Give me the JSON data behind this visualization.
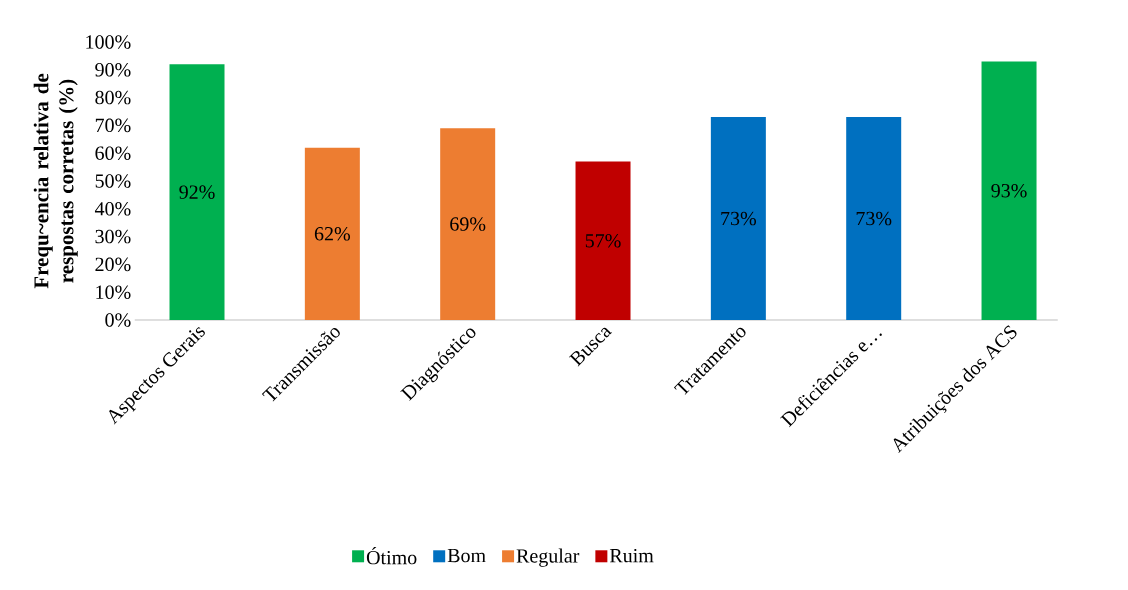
{
  "chart_data": {
    "type": "bar",
    "ylabel": "Frequ~encia relativa de respostas corretas (%)",
    "categories": [
      "Aspectos Gerais",
      "Transmissão",
      "Diagnóstico",
      "Busca",
      "Tratamento",
      "Deficiências e…",
      "Atribuições dos ACS"
    ],
    "series": [
      {
        "name": "Ótimo",
        "color": "#00b050",
        "values": [
          92,
          null,
          null,
          null,
          null,
          null,
          93
        ],
        "value_labels": [
          "92%",
          null,
          null,
          null,
          null,
          null,
          "93%"
        ]
      },
      {
        "name": "Bom",
        "color": "#0070c0",
        "values": [
          null,
          null,
          null,
          null,
          73,
          73,
          null
        ],
        "value_labels": [
          null,
          null,
          null,
          null,
          "73%",
          "73%",
          null
        ]
      },
      {
        "name": "Regular",
        "color": "#ed7d31",
        "values": [
          null,
          62,
          69,
          null,
          null,
          null,
          null
        ],
        "value_labels": [
          null,
          "62%",
          "69%",
          null,
          null,
          null,
          null
        ]
      },
      {
        "name": "Ruim",
        "color": "#c00000",
        "values": [
          null,
          null,
          null,
          57,
          null,
          null,
          null
        ],
        "value_labels": [
          null,
          null,
          null,
          "57%",
          null,
          null,
          null
        ]
      }
    ],
    "ylim": [
      0,
      100
    ],
    "yticks": [
      {
        "value": 0,
        "label": "0%"
      },
      {
        "value": 10,
        "label": "10%"
      },
      {
        "value": 20,
        "label": "20%"
      },
      {
        "value": 30,
        "label": "30%"
      },
      {
        "value": 40,
        "label": "40%"
      },
      {
        "value": 50,
        "label": "50%"
      },
      {
        "value": 60,
        "label": "60%"
      },
      {
        "value": 70,
        "label": "70%"
      },
      {
        "value": 80,
        "label": "80%"
      },
      {
        "value": 90,
        "label": "90%"
      },
      {
        "value": 100,
        "label": "100%"
      }
    ],
    "legend": "bottom"
  }
}
